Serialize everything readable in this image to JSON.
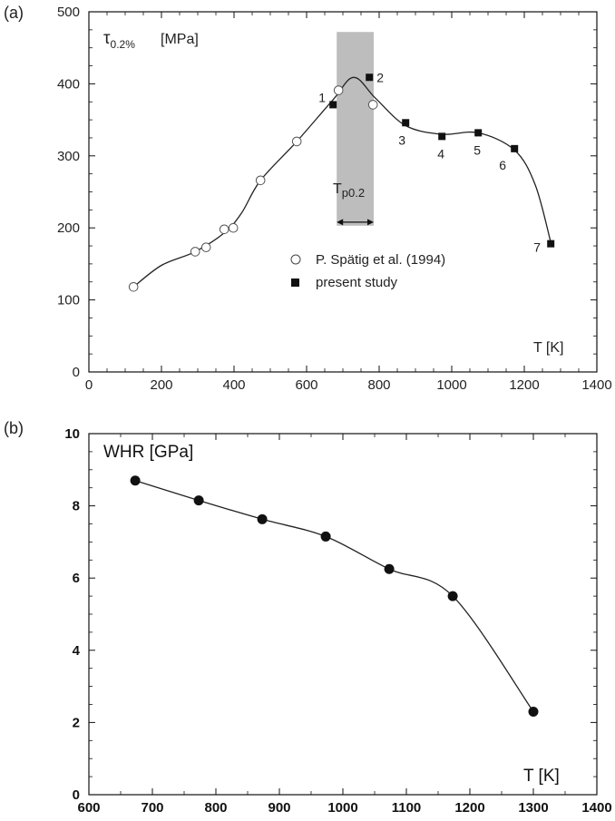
{
  "chart_data": [
    {
      "panel": "(a)",
      "type": "scatter",
      "ylabel_symbol": "τ",
      "ylabel_subscript": "0.2%",
      "ylabel_unit": "[MPa]",
      "xlabel": "T [K]",
      "xlim": [
        0,
        1400
      ],
      "ylim": [
        0,
        500
      ],
      "xticks": [
        0,
        200,
        400,
        600,
        800,
        1000,
        1200,
        1400
      ],
      "yticks": [
        0,
        100,
        200,
        300,
        400,
        500
      ],
      "grid": false,
      "legend_position": "center-right",
      "series": [
        {
          "name": "P. Spätig et al. (1994)",
          "marker": "open-circle",
          "points": [
            {
              "x": 123,
              "y": 118
            },
            {
              "x": 293,
              "y": 167
            },
            {
              "x": 323,
              "y": 173
            },
            {
              "x": 373,
              "y": 198
            },
            {
              "x": 398,
              "y": 200
            },
            {
              "x": 473,
              "y": 266
            },
            {
              "x": 573,
              "y": 320
            },
            {
              "x": 688,
              "y": 391
            },
            {
              "x": 783,
              "y": 371
            }
          ]
        },
        {
          "name": "present study",
          "marker": "filled-square",
          "points": [
            {
              "x": 673,
              "y": 371,
              "label": "1"
            },
            {
              "x": 773,
              "y": 409,
              "label": "2"
            },
            {
              "x": 873,
              "y": 346,
              "label": "3"
            },
            {
              "x": 973,
              "y": 327,
              "label": "4"
            },
            {
              "x": 1073,
              "y": 332,
              "label": "5"
            },
            {
              "x": 1173,
              "y": 310,
              "label": "6"
            },
            {
              "x": 1273,
              "y": 178,
              "label": "7"
            }
          ]
        }
      ],
      "trend_curve": [
        {
          "x": 123,
          "y": 118
        },
        {
          "x": 200,
          "y": 148
        },
        {
          "x": 293,
          "y": 167
        },
        {
          "x": 373,
          "y": 193
        },
        {
          "x": 420,
          "y": 220
        },
        {
          "x": 473,
          "y": 266
        },
        {
          "x": 573,
          "y": 320
        },
        {
          "x": 673,
          "y": 378
        },
        {
          "x": 730,
          "y": 409
        },
        {
          "x": 790,
          "y": 380
        },
        {
          "x": 873,
          "y": 342
        },
        {
          "x": 973,
          "y": 330
        },
        {
          "x": 1073,
          "y": 332
        },
        {
          "x": 1173,
          "y": 308
        },
        {
          "x": 1230,
          "y": 260
        },
        {
          "x": 1273,
          "y": 180
        }
      ],
      "shaded_band": {
        "x": [
          683,
          785
        ],
        "y": [
          203,
          472
        ]
      },
      "band_annotation": {
        "main": "T",
        "sub": "p0.2",
        "arrow_x": [
          683,
          785
        ],
        "arrow_y": 208
      }
    },
    {
      "panel": "(b)",
      "type": "line",
      "ylabel": "WHR [GPa]",
      "xlabel": "T [K]",
      "xlim": [
        600,
        1400
      ],
      "ylim": [
        0,
        10
      ],
      "xticks": [
        600,
        700,
        800,
        900,
        1000,
        1100,
        1200,
        1300,
        1400
      ],
      "yticks": [
        0,
        2,
        4,
        6,
        8,
        10
      ],
      "grid": false,
      "series": [
        {
          "marker": "filled-circle",
          "x": [
            673,
            773,
            873,
            973,
            1073,
            1173,
            1300
          ],
          "y": [
            8.7,
            8.15,
            7.63,
            7.15,
            6.25,
            5.5,
            2.3
          ]
        }
      ]
    }
  ]
}
